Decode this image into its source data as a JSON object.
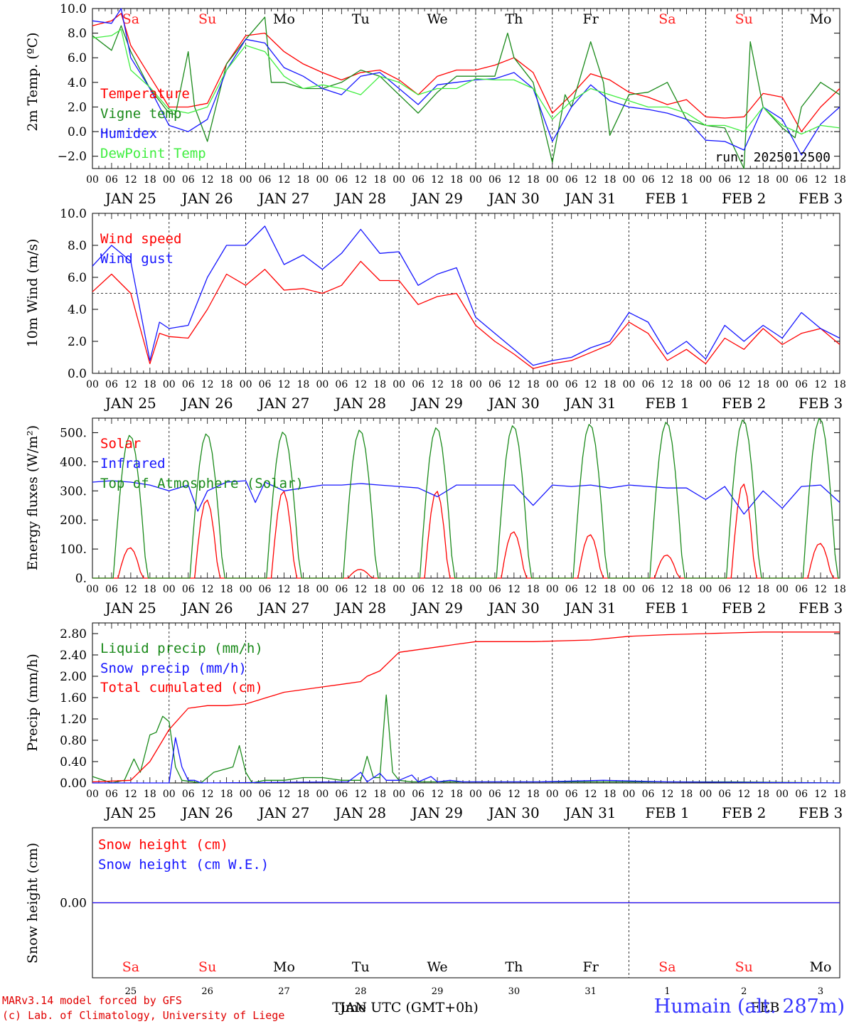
{
  "figure": {
    "credits": [
      "MARv3.14 model forced by GFS",
      "(c) Lab. of Climatology, University of Liege"
    ],
    "station": "Humain (alt. 287m)",
    "run_label": "run: 2025012500",
    "time_axis_label": "Time UTC (GMT+0h)",
    "bottom_month_label": "JAN",
    "bottom_month_label_2": "FEB",
    "hour_ticks": [
      "00",
      "06",
      "12",
      "18"
    ],
    "date_labels": [
      "JAN 25",
      "JAN 26",
      "JAN 27",
      "JAN 28",
      "JAN 29",
      "JAN 30",
      "JAN 31",
      "FEB  1",
      "FEB  2",
      "FEB  3"
    ],
    "weekdays": [
      "Sa",
      "Su",
      "Mo",
      "Tu",
      "We",
      "Th",
      "Fr",
      "Sa",
      "Su",
      "Mo"
    ],
    "day_numbers": [
      "25",
      "26",
      "27",
      "28",
      "29",
      "30",
      "31",
      "1",
      "2",
      "3"
    ],
    "colors": {
      "weekend": "#ff2020",
      "weekday": "#000000",
      "red": "#ff0000",
      "green": "#1a8a1a",
      "blue": "#1515ff",
      "lightgreen": "#40ee40"
    }
  },
  "chart_data": [
    {
      "type": "line",
      "ylabel": "2m Temp. (ºC)",
      "yticks": [
        "10.0",
        "8.0",
        "6.0",
        "4.0",
        "2.0",
        "0.0",
        "−2.0"
      ],
      "ylim": [
        -3.0,
        10.0
      ],
      "reference_line": 0.0,
      "x_unit": "hours since JAN 25 00 UTC",
      "series": [
        {
          "name": "Temperature",
          "color": "#ff0000",
          "x": [
            0,
            6,
            9,
            12,
            18,
            24,
            30,
            36,
            42,
            48,
            54,
            60,
            66,
            72,
            78,
            84,
            90,
            96,
            102,
            108,
            114,
            120,
            126,
            132,
            138,
            144,
            150,
            156,
            162,
            168,
            174,
            180,
            186,
            192,
            198,
            204,
            210,
            216,
            222,
            228,
            234
          ],
          "values": [
            8.6,
            9.0,
            9.6,
            7.0,
            4.5,
            2.0,
            2.0,
            2.3,
            5.5,
            7.8,
            8.0,
            6.5,
            5.5,
            4.8,
            4.2,
            4.8,
            5.0,
            4.2,
            3.0,
            4.5,
            5.0,
            5.0,
            5.4,
            6.0,
            4.8,
            1.5,
            3.0,
            4.7,
            4.2,
            3.2,
            2.8,
            2.2,
            2.6,
            1.2,
            1.1,
            1.2,
            3.1,
            2.8,
            0.0,
            2.0,
            3.5
          ]
        },
        {
          "name": "Vigne temp",
          "color": "#1a8a1a",
          "x": [
            0,
            6,
            9,
            12,
            18,
            24,
            26,
            30,
            32,
            36,
            42,
            48,
            54,
            56,
            60,
            66,
            72,
            78,
            84,
            90,
            96,
            102,
            108,
            114,
            120,
            126,
            130,
            132,
            138,
            144,
            148,
            150,
            156,
            160,
            162,
            168,
            174,
            180,
            186,
            192,
            198,
            204,
            206,
            210,
            216,
            220,
            222,
            228,
            234
          ],
          "values": [
            7.8,
            6.6,
            8.6,
            6.5,
            3.5,
            1.5,
            1.4,
            6.5,
            2.0,
            -0.8,
            5.5,
            7.5,
            9.3,
            4.0,
            4.0,
            3.5,
            3.5,
            4.0,
            5.0,
            4.5,
            3.0,
            1.5,
            3.2,
            4.5,
            4.5,
            4.5,
            8.0,
            6.0,
            4.0,
            -2.5,
            3.0,
            2.0,
            7.3,
            4.0,
            -0.3,
            3.0,
            3.2,
            4.0,
            1.0,
            0.5,
            0.3,
            -3.0,
            7.3,
            2.0,
            0.3,
            -0.5,
            2.0,
            4.0,
            3.0
          ]
        },
        {
          "name": "Humidex",
          "color": "#1515ff",
          "x": [
            0,
            6,
            9,
            12,
            18,
            24,
            30,
            36,
            42,
            48,
            54,
            60,
            66,
            72,
            78,
            84,
            90,
            96,
            102,
            108,
            114,
            120,
            126,
            132,
            138,
            144,
            150,
            156,
            162,
            168,
            174,
            180,
            186,
            192,
            198,
            204,
            210,
            216,
            222,
            228,
            234
          ],
          "values": [
            9.0,
            8.8,
            10.0,
            6.0,
            3.5,
            0.5,
            0.0,
            1.0,
            5.0,
            7.5,
            7.2,
            5.2,
            4.5,
            3.5,
            3.0,
            4.5,
            4.8,
            3.5,
            2.2,
            3.8,
            4.0,
            4.2,
            4.3,
            4.8,
            3.5,
            -0.8,
            2.0,
            3.8,
            2.5,
            2.0,
            1.8,
            1.5,
            1.0,
            -0.7,
            -0.8,
            -1.5,
            2.0,
            1.0,
            -1.9,
            0.6,
            2.0
          ]
        },
        {
          "name": "DewPoint Temp",
          "color": "#40ee40",
          "x": [
            0,
            6,
            9,
            12,
            18,
            24,
            30,
            36,
            42,
            48,
            54,
            60,
            66,
            72,
            78,
            84,
            90,
            96,
            102,
            108,
            114,
            120,
            126,
            132,
            138,
            144,
            150,
            156,
            162,
            168,
            174,
            180,
            186,
            192,
            198,
            204,
            210,
            216,
            222,
            228,
            234
          ],
          "values": [
            7.6,
            7.8,
            8.3,
            5.0,
            3.6,
            1.8,
            1.5,
            2.0,
            5.0,
            7.0,
            6.5,
            4.5,
            3.5,
            3.8,
            3.5,
            3.0,
            4.5,
            4.0,
            3.0,
            3.5,
            3.5,
            4.3,
            4.2,
            4.2,
            3.5,
            1.0,
            2.5,
            3.5,
            3.0,
            2.5,
            2.0,
            2.0,
            1.5,
            0.5,
            0.5,
            0.0,
            2.0,
            0.5,
            -0.2,
            0.5,
            0.3
          ]
        }
      ]
    },
    {
      "type": "line",
      "ylabel": "10m Wind (m/s)",
      "yticks": [
        "10.0",
        "8.0",
        "6.0",
        "4.0",
        "2.0",
        "0.0"
      ],
      "ylim": [
        0.0,
        10.0
      ],
      "reference_line": 5.0,
      "series": [
        {
          "name": "Wind speed",
          "color": "#ff0000",
          "x": [
            0,
            6,
            12,
            18,
            21,
            24,
            30,
            36,
            42,
            48,
            54,
            60,
            66,
            72,
            78,
            84,
            90,
            96,
            102,
            108,
            114,
            120,
            126,
            132,
            138,
            144,
            150,
            156,
            162,
            168,
            174,
            180,
            186,
            192,
            198,
            204,
            210,
            216,
            222,
            228,
            234
          ],
          "values": [
            5.1,
            6.2,
            5.0,
            0.6,
            2.5,
            2.3,
            2.2,
            4.0,
            6.2,
            5.5,
            6.5,
            5.2,
            5.3,
            5.0,
            5.5,
            7.0,
            5.8,
            5.8,
            4.3,
            4.8,
            5.0,
            3.0,
            2.0,
            1.2,
            0.3,
            0.6,
            0.8,
            1.3,
            1.8,
            3.2,
            2.5,
            0.8,
            1.5,
            0.6,
            2.2,
            1.5,
            2.8,
            1.8,
            2.5,
            2.8,
            1.8
          ]
        },
        {
          "name": "Wind gust",
          "color": "#1515ff",
          "x": [
            0,
            6,
            12,
            18,
            21,
            24,
            30,
            36,
            42,
            48,
            54,
            60,
            66,
            72,
            78,
            84,
            90,
            96,
            102,
            108,
            114,
            120,
            126,
            132,
            138,
            144,
            150,
            156,
            162,
            168,
            174,
            180,
            186,
            192,
            198,
            204,
            210,
            216,
            222,
            228,
            234
          ],
          "values": [
            6.7,
            8.0,
            7.0,
            0.8,
            3.2,
            2.8,
            3.0,
            6.0,
            8.0,
            8.0,
            9.2,
            6.8,
            7.4,
            6.5,
            7.5,
            9.0,
            7.5,
            7.6,
            5.5,
            6.2,
            6.6,
            3.5,
            2.5,
            1.5,
            0.5,
            0.8,
            1.0,
            1.6,
            2.0,
            3.8,
            3.2,
            1.2,
            2.0,
            0.9,
            3.0,
            2.0,
            3.0,
            2.2,
            3.8,
            2.8,
            2.2
          ]
        }
      ]
    },
    {
      "type": "line",
      "ylabel": "Energy fluxes (W/m²)",
      "yticks": [
        "500.",
        "400.",
        "300.",
        "200.",
        "100.",
        "0."
      ],
      "ylim": [
        0,
        550
      ],
      "series": [
        {
          "name": "Solar",
          "color": "#ff0000",
          "peaks": [
            105,
            270,
            300,
            30,
            300,
            160,
            150,
            80,
            325,
            120
          ]
        },
        {
          "name": "Infrared",
          "color": "#1515ff",
          "x": [
            0,
            6,
            12,
            18,
            24,
            30,
            33,
            36,
            42,
            48,
            51,
            54,
            60,
            66,
            72,
            78,
            84,
            90,
            96,
            102,
            108,
            114,
            120,
            126,
            132,
            138,
            144,
            150,
            156,
            162,
            168,
            174,
            180,
            186,
            192,
            198,
            204,
            210,
            216,
            222,
            228,
            234
          ],
          "values": [
            330,
            335,
            330,
            320,
            300,
            320,
            230,
            300,
            330,
            335,
            260,
            330,
            300,
            310,
            320,
            320,
            325,
            320,
            315,
            310,
            280,
            320,
            320,
            320,
            320,
            250,
            320,
            315,
            320,
            310,
            320,
            315,
            310,
            310,
            270,
            315,
            220,
            300,
            240,
            315,
            320,
            260
          ]
        },
        {
          "name": "Top of Atmosphere (Solar)",
          "color": "#1a8a1a",
          "peaks": [
            492,
            497,
            503,
            510,
            518,
            525,
            530,
            537,
            545,
            550
          ]
        }
      ]
    },
    {
      "type": "line",
      "ylabel": "Precip (mm/h)",
      "yticks": [
        "2.80",
        "2.40",
        "2.00",
        "1.60",
        "1.20",
        "0.80",
        "0.40",
        "0.00"
      ],
      "ylim": [
        0.0,
        3.0
      ],
      "series": [
        {
          "name": "Liquid precip (mm/h)",
          "color": "#1a8a1a",
          "x": [
            0,
            6,
            10,
            13,
            15,
            18,
            20,
            22,
            24,
            26,
            28,
            34,
            38,
            44,
            46,
            48,
            50,
            54,
            60,
            66,
            72,
            78,
            84,
            86,
            88,
            90,
            92,
            94,
            96,
            100,
            110,
            120,
            140,
            160,
            180,
            200,
            234
          ],
          "values": [
            0.12,
            0.0,
            0.05,
            0.45,
            0.2,
            0.9,
            0.95,
            1.25,
            1.15,
            0.3,
            0.05,
            0.0,
            0.2,
            0.3,
            0.7,
            0.2,
            0.0,
            0.05,
            0.05,
            0.1,
            0.1,
            0.05,
            0.05,
            0.5,
            0.1,
            0.1,
            1.65,
            0.2,
            0.05,
            0.02,
            0.02,
            0.02,
            0.02,
            0.02,
            0.02,
            0.02,
            0.0
          ]
        },
        {
          "name": "Snow precip (mm/h)",
          "color": "#1515ff",
          "x": [
            0,
            24,
            26,
            28,
            30,
            32,
            34,
            80,
            84,
            86,
            90,
            92,
            96,
            100,
            102,
            106,
            108,
            112,
            116,
            120,
            140,
            160,
            180,
            234
          ],
          "values": [
            0.0,
            0.0,
            0.85,
            0.3,
            0.05,
            0.05,
            0.0,
            0.02,
            0.2,
            0.02,
            0.18,
            0.05,
            0.05,
            0.15,
            0.02,
            0.12,
            0.02,
            0.05,
            0.02,
            0.02,
            0.02,
            0.05,
            0.02,
            0.0
          ]
        },
        {
          "name": "Total cumulated (cm)",
          "color": "#ff0000",
          "x": [
            0,
            12,
            18,
            24,
            30,
            36,
            42,
            48,
            60,
            72,
            78,
            84,
            86,
            90,
            96,
            108,
            114,
            120,
            138,
            156,
            168,
            180,
            192,
            210,
            234
          ],
          "values": [
            0.02,
            0.05,
            0.4,
            1.0,
            1.4,
            1.45,
            1.45,
            1.48,
            1.7,
            1.8,
            1.85,
            1.9,
            2.0,
            2.1,
            2.45,
            2.55,
            2.6,
            2.65,
            2.65,
            2.68,
            2.75,
            2.78,
            2.8,
            2.83,
            2.83
          ]
        }
      ]
    },
    {
      "type": "line",
      "ylabel": "Snow height (cm)",
      "yticks": [
        "0.00"
      ],
      "series": [
        {
          "name": "Snow height (cm)",
          "color": "#ff0000",
          "x": [
            0,
            234
          ],
          "values": [
            0.0,
            0.0
          ]
        },
        {
          "name": "Snow height (cm W.E.)",
          "color": "#1515ff",
          "x": [
            0,
            234
          ],
          "values": [
            0.0,
            0.0
          ]
        }
      ]
    }
  ]
}
